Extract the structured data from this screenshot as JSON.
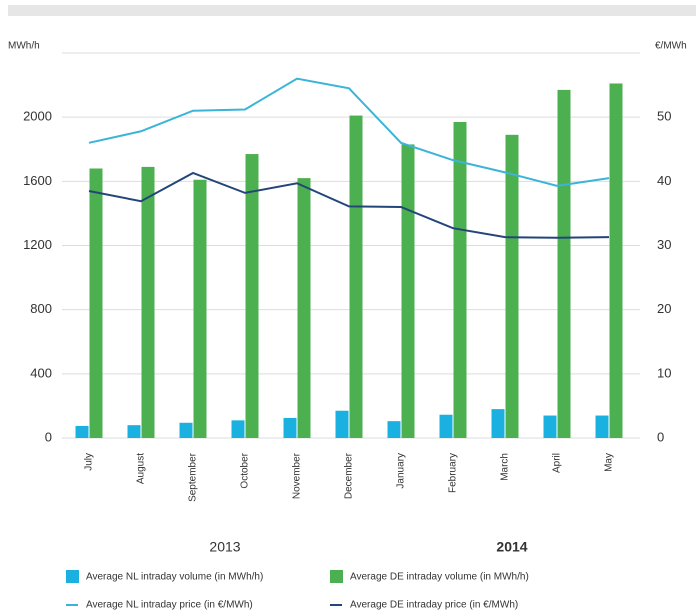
{
  "chart_data": {
    "type": "bar_line",
    "ylabel": "MWh/h",
    "y2label": "€/MWh",
    "categories": [
      "July",
      "August",
      "September",
      "October",
      "November",
      "December",
      "January",
      "February",
      "March",
      "April",
      "May"
    ],
    "annotations": [
      "2013",
      "2014"
    ],
    "series": [
      {
        "name": "Average NL intraday volume (in MWh/h)",
        "type": "bar",
        "color": "#1ab0e0",
        "values": [
          75,
          80,
          95,
          110,
          125,
          170,
          105,
          145,
          180,
          140,
          140
        ]
      },
      {
        "name": "Average DE intraday volume (in MWh/h)",
        "type": "bar",
        "color": "#4caf50",
        "values": [
          1680,
          1690,
          1610,
          1770,
          1620,
          2010,
          1830,
          1970,
          1890,
          2170,
          2210
        ]
      },
      {
        "name": "Average NL intraday price (in €/MWh)",
        "type": "line",
        "axis": "y2",
        "color": "#3bb4d8",
        "values": [
          46,
          47.8,
          51,
          51.2,
          56,
          54.5,
          46,
          43.3,
          41.4,
          39.3,
          40.5
        ]
      },
      {
        "name": "Average DE intraday price (in €/MWh)",
        "type": "line",
        "axis": "y2",
        "color": "#23457a",
        "values": [
          38.5,
          36.9,
          41.3,
          38.2,
          39.7,
          36.1,
          36,
          32.7,
          31.3,
          31.2,
          31.3
        ]
      }
    ],
    "ylim": [
      0,
      2400
    ],
    "yticks": [
      0,
      400,
      800,
      1200,
      1600,
      2000
    ],
    "y2lim": [
      0,
      60
    ],
    "y2ticks": [
      0,
      10,
      20,
      30,
      40,
      50
    ],
    "grid": true
  }
}
